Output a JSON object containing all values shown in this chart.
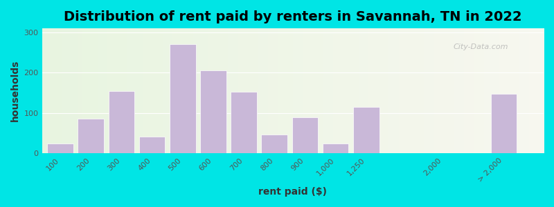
{
  "title": "Distribution of rent paid by renters in Savannah, TN in 2022",
  "xlabel": "rent paid ($)",
  "ylabel": "households",
  "bar_labels": [
    "100",
    "200",
    "300",
    "400",
    "500",
    "600",
    "700",
    "800",
    "900",
    "1,000",
    "1,250",
    "2,000",
    "> 2,000"
  ],
  "bar_values": [
    25,
    85,
    155,
    42,
    270,
    205,
    152,
    47,
    90,
    25,
    115,
    0,
    148
  ],
  "bar_color": "#c9b8d8",
  "bar_edgecolor": "#ffffff",
  "ylim": [
    0,
    310
  ],
  "yticks": [
    0,
    100,
    200,
    300
  ],
  "bg_outer": "#00e5e5",
  "bg_inner_left": "#e8f5e0",
  "bg_inner_right": "#f5f5f0",
  "title_fontsize": 14,
  "axis_label_fontsize": 10,
  "tick_fontsize": 8,
  "watermark": "City-Data.com"
}
